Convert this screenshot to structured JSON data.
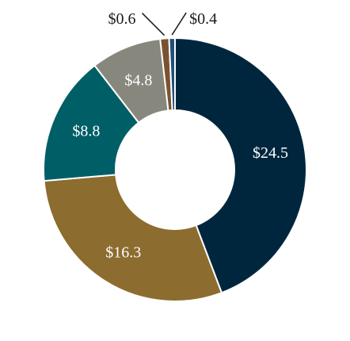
{
  "chart_data": {
    "type": "pie",
    "donut": true,
    "title": "",
    "slices": [
      {
        "label": "$24.5",
        "value": 24.5,
        "color": "#00263e"
      },
      {
        "label": "$16.3",
        "value": 16.3,
        "color": "#8d6c2f"
      },
      {
        "label": "$8.8",
        "value": 8.8,
        "color": "#005f66"
      },
      {
        "label": "$4.8",
        "value": 4.8,
        "color": "#87877e"
      },
      {
        "label": "$0.6",
        "value": 0.6,
        "color": "#7b5230"
      },
      {
        "label": "$0.4",
        "value": 0.4,
        "color": "#1e4f7c"
      }
    ]
  }
}
